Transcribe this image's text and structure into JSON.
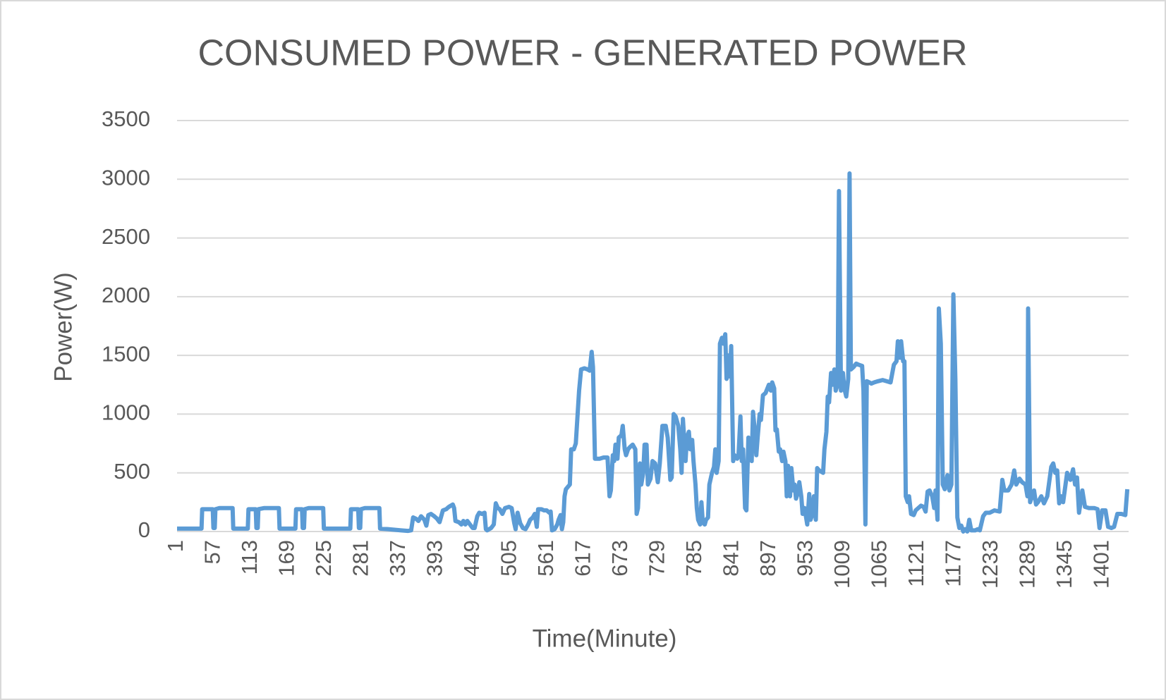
{
  "chart_data": {
    "type": "line",
    "title": "CONSUMED POWER - GENERATED POWER",
    "x_label": "Time(Minute)",
    "y_label": "Power(W)",
    "color": "#5b9bd5",
    "grid": true,
    "xlim": [
      1,
      1440
    ],
    "xticks": [
      1,
      57,
      113,
      169,
      225,
      281,
      337,
      393,
      449,
      505,
      561,
      617,
      673,
      729,
      785,
      841,
      897,
      953,
      1009,
      1065,
      1121,
      1177,
      1233,
      1289,
      1345,
      1401
    ],
    "ylim": [
      0,
      3500
    ],
    "yticks": [
      0,
      500,
      1000,
      1500,
      2000,
      2500,
      3000,
      3500
    ],
    "x": [
      1,
      38,
      39,
      55,
      56,
      58,
      59,
      65,
      85,
      86,
      108,
      109,
      120,
      121,
      123,
      124,
      133,
      155,
      156,
      180,
      181,
      190,
      191,
      193,
      194,
      200,
      222,
      223,
      263,
      264,
      275,
      276,
      278,
      279,
      285,
      307,
      308,
      320,
      330,
      340,
      350,
      355,
      358,
      362,
      366,
      370,
      375,
      378,
      381,
      385,
      390,
      394,
      398,
      403,
      408,
      412,
      418,
      420,
      422,
      427,
      431,
      434,
      437,
      440,
      444,
      448,
      451,
      455,
      458,
      462,
      466,
      468,
      470,
      476,
      480,
      483,
      486,
      489,
      493,
      497,
      503,
      507,
      511,
      513,
      516,
      520,
      524,
      528,
      532,
      535,
      539,
      542,
      545,
      547,
      552,
      556,
      560,
      564,
      566,
      568,
      572,
      576,
      578,
      581,
      583,
      585,
      587,
      589,
      592,
      595,
      597,
      601,
      604,
      609,
      612,
      617,
      622,
      625,
      628,
      630,
      633,
      640,
      646,
      652,
      655,
      657,
      660,
      662,
      664,
      667,
      669,
      673,
      675,
      678,
      680,
      683,
      686,
      690,
      694,
      696,
      698,
      701,
      703,
      706,
      708,
      711,
      713,
      717,
      720,
      724,
      728,
      731,
      735,
      740,
      743,
      747,
      749,
      752,
      755,
      759,
      762,
      764,
      766,
      770,
      772,
      775,
      777,
      780,
      782,
      785,
      787,
      789,
      792,
      794,
      796,
      799,
      801,
      804,
      806,
      810,
      813,
      815,
      817,
      820,
      822,
      825,
      827,
      830,
      832,
      834,
      837,
      839,
      842,
      844,
      848,
      850,
      853,
      855,
      857,
      860,
      862,
      865,
      867,
      870,
      872,
      874,
      877,
      879,
      882,
      884,
      887,
      891,
      896,
      899,
      901,
      904,
      906,
      908,
      911,
      913,
      916,
      918,
      921,
      923,
      925,
      928,
      930,
      933,
      935,
      937,
      940,
      942,
      945,
      947,
      950,
      952,
      954,
      957,
      959,
      962,
      964,
      967,
      969,
      972,
      975,
      978,
      980,
      983,
      985,
      987,
      990,
      992,
      995,
      997,
      1000,
      1002,
      1005,
      1008,
      1010,
      1013,
      1016,
      1018,
      1020,
      1024,
      1028,
      1032,
      1037,
      1039,
      1042,
      1044,
      1048,
      1051,
      1055,
      1061,
      1068,
      1074,
      1080,
      1085,
      1089,
      1091,
      1094,
      1096,
      1099,
      1101,
      1103,
      1106,
      1108,
      1111,
      1115,
      1118,
      1122,
      1126,
      1130,
      1133,
      1136,
      1139,
      1143,
      1146,
      1148,
      1151,
      1153,
      1156,
      1159,
      1162,
      1166,
      1169,
      1172,
      1175,
      1178,
      1181,
      1184,
      1187,
      1190,
      1193,
      1196,
      1199,
      1202,
      1208,
      1212,
      1215,
      1220,
      1224,
      1230,
      1237,
      1245,
      1249,
      1252,
      1258,
      1263,
      1267,
      1270,
      1275,
      1279,
      1284,
      1287,
      1288,
      1291,
      1294,
      1297,
      1300,
      1303,
      1308,
      1312,
      1317,
      1323,
      1326,
      1329,
      1332,
      1335,
      1338,
      1341,
      1347,
      1352,
      1356,
      1359,
      1362,
      1365,
      1370,
      1374,
      1380,
      1388,
      1393,
      1396,
      1400,
      1405,
      1409,
      1414,
      1418,
      1423,
      1429,
      1435,
      1438
    ],
    "values": [
      25,
      25,
      190,
      190,
      30,
      30,
      190,
      200,
      200,
      25,
      25,
      190,
      190,
      30,
      30,
      190,
      200,
      200,
      25,
      25,
      190,
      190,
      30,
      30,
      190,
      200,
      200,
      25,
      25,
      190,
      190,
      30,
      30,
      190,
      200,
      200,
      25,
      20,
      15,
      10,
      5,
      10,
      120,
      110,
      90,
      130,
      100,
      50,
      140,
      150,
      130,
      110,
      80,
      180,
      190,
      210,
      230,
      200,
      90,
      80,
      60,
      90,
      60,
      90,
      60,
      30,
      30,
      130,
      160,
      150,
      160,
      20,
      10,
      30,
      60,
      240,
      200,
      190,
      150,
      200,
      210,
      200,
      70,
      20,
      160,
      70,
      30,
      20,
      60,
      100,
      120,
      150,
      40,
      190,
      190,
      180,
      180,
      160,
      170,
      10,
      20,
      60,
      100,
      140,
      20,
      80,
      300,
      360,
      380,
      400,
      700,
      700,
      750,
      1200,
      1380,
      1390,
      1380,
      1370,
      1530,
      1400,
      620,
      620,
      630,
      630,
      300,
      350,
      650,
      600,
      740,
      620,
      800,
      820,
      900,
      700,
      650,
      700,
      720,
      740,
      700,
      150,
      200,
      580,
      400,
      500,
      740,
      740,
      400,
      450,
      600,
      580,
      420,
      580,
      900,
      900,
      800,
      440,
      460,
      1000,
      980,
      900,
      700,
      500,
      960,
      600,
      800,
      850,
      700,
      780,
      600,
      400,
      200,
      100,
      60,
      250,
      80,
      60,
      100,
      120,
      400,
      500,
      550,
      700,
      500,
      600,
      1600,
      1650,
      1600,
      1680,
      1300,
      1500,
      1320,
      1580,
      600,
      650,
      620,
      640,
      980,
      600,
      700,
      200,
      180,
      800,
      750,
      600,
      1020,
      900,
      650,
      800,
      1000,
      950,
      1160,
      1180,
      1250,
      1200,
      1270,
      1220,
      860,
      870,
      680,
      700,
      600,
      680,
      600,
      300,
      560,
      300,
      540,
      350,
      400,
      280,
      330,
      420,
      300,
      150,
      200,
      130,
      60,
      320,
      100,
      150,
      300,
      100,
      540,
      520,
      510,
      500,
      700,
      850,
      1150,
      1100,
      1350,
      1250,
      1380,
      1200,
      1250,
      2900,
      1200,
      1350,
      1220,
      1150,
      1300,
      3050,
      1380,
      1400,
      1430,
      1420,
      1410,
      1200,
      60,
      1280,
      1270,
      1260,
      1270,
      1280,
      1290,
      1280,
      1270,
      1420,
      1450,
      1620,
      1480,
      1620,
      1450,
      1450,
      300,
      250,
      300,
      150,
      140,
      180,
      200,
      220,
      210,
      170,
      340,
      350,
      300,
      200,
      350,
      100,
      1900,
      1600,
      400,
      360,
      480,
      350,
      400,
      2020,
      1300,
      120,
      30,
      50,
      0,
      20,
      0,
      100,
      10,
      10,
      20,
      10,
      130,
      160,
      160,
      180,
      170,
      440,
      350,
      350,
      400,
      520,
      400,
      450,
      420,
      400,
      300,
      1900,
      250,
      300,
      350,
      230,
      250,
      300,
      240,
      300,
      550,
      580,
      500,
      520,
      240,
      300,
      250,
      500,
      440,
      530,
      400,
      460,
      160,
      350,
      210,
      200,
      200,
      190,
      30,
      180,
      180,
      40,
      30,
      40,
      150,
      150,
      140,
      360
    ]
  }
}
